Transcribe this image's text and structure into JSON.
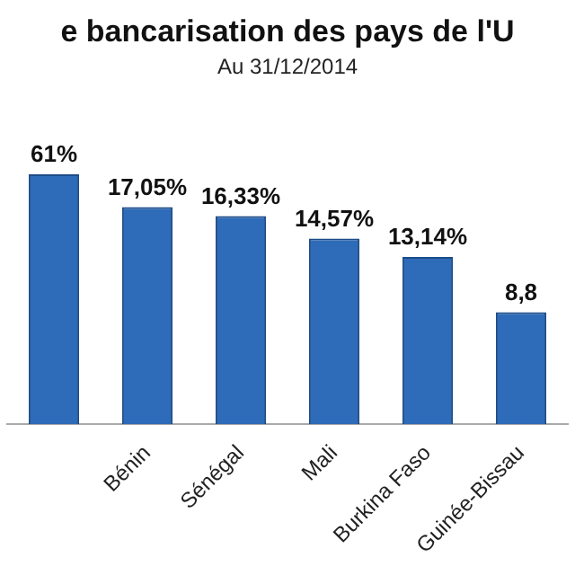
{
  "chart_data": {
    "type": "bar",
    "title": "e bancarisation des pays de l'U",
    "subtitle": "Au 31/12/2014",
    "categories": [
      null,
      "Bénin",
      "Sénégal",
      "Mali",
      "Burkina Faso",
      "Guinée-Bissau"
    ],
    "values": [
      19.61,
      17.05,
      16.33,
      14.57,
      13.14,
      8.8
    ],
    "value_labels": [
      null,
      "17,05%",
      "16,33%",
      "14,57%",
      "13,14%",
      "8,8"
    ],
    "annotations": [
      "61%"
    ],
    "color": "#2e6bb8",
    "grid": false,
    "legend": false
  }
}
